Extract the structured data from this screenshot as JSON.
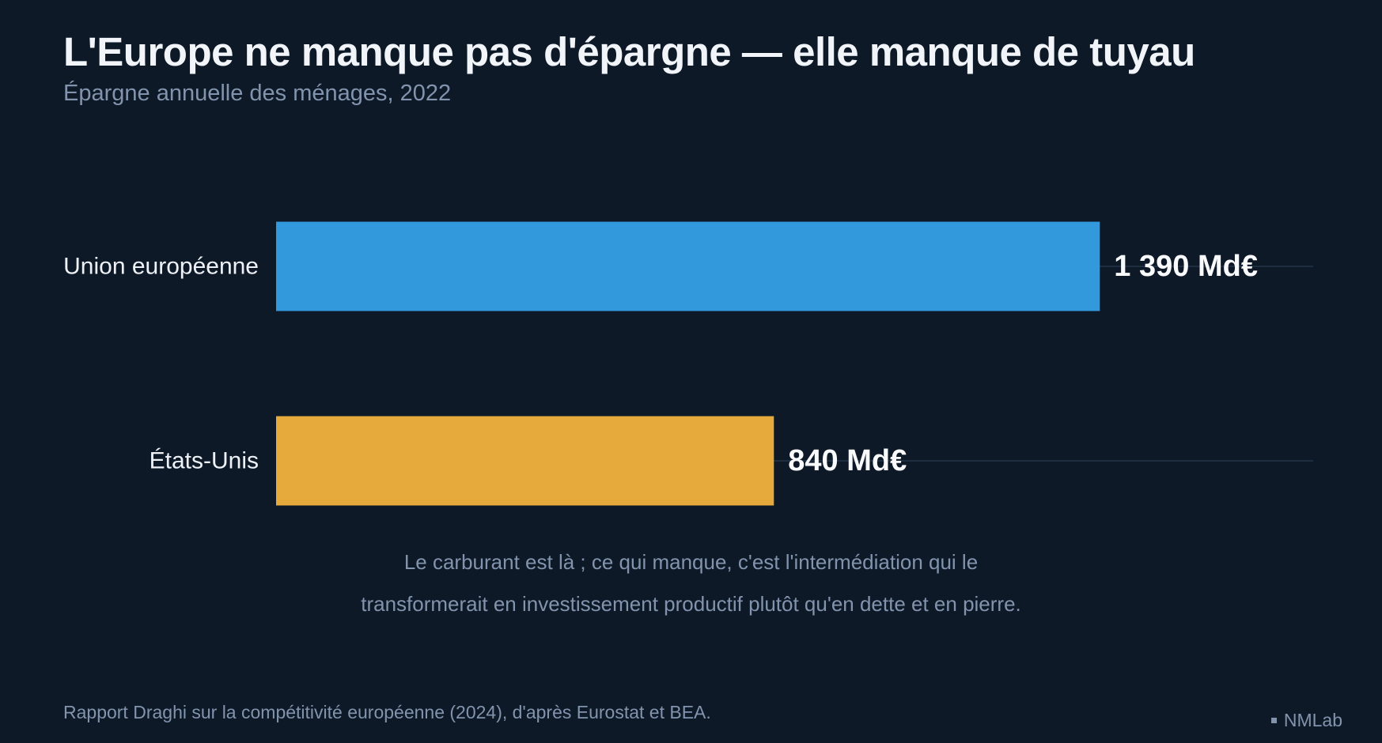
{
  "title": "L'Europe ne manque pas d'épargne — elle manque de tuyau",
  "subtitle": "Épargne annuelle des ménages, 2022",
  "annotation": {
    "line1": "Le carburant est là ; ce qui manque, c'est l'intermédiation qui le",
    "line2": "transformerait en investissement productif plutôt qu'en dette et en pierre."
  },
  "source": "Rapport Draghi sur la compétitivité européenne (2024), d'après Eurostat et BEA.",
  "brand": "NMLab",
  "colors": {
    "background": "#0e1928",
    "bar_eu": "#3399dd",
    "bar_us": "#e5a93c",
    "gridline": "#1f2d40"
  },
  "chart_data": {
    "type": "bar",
    "orientation": "horizontal",
    "categories": [
      "Union européenne",
      "États-Unis"
    ],
    "values": [
      1390,
      840
    ],
    "value_labels": [
      "1 390 Md€",
      "840 Md€"
    ],
    "colors": [
      "#3399dd",
      "#e5a93c"
    ],
    "xlim": [
      0,
      1750
    ],
    "grid": false,
    "legend": "none"
  }
}
